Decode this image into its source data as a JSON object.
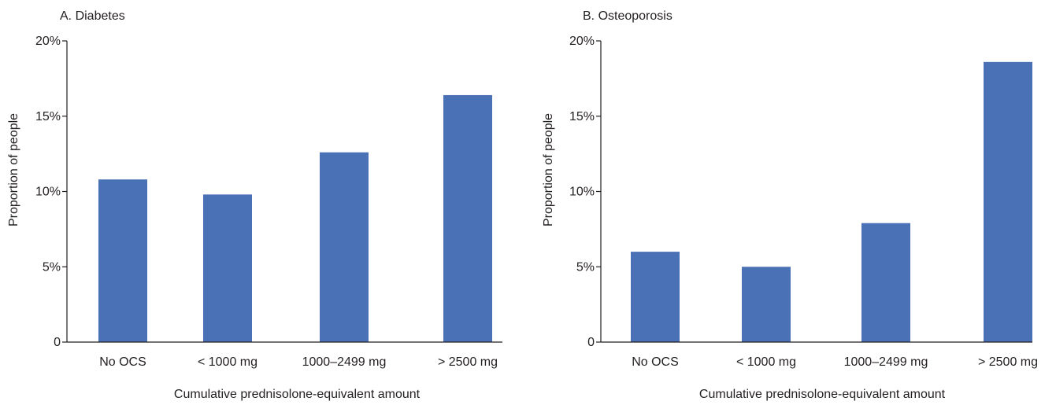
{
  "chart_data": [
    {
      "type": "bar",
      "title": "A. Diabetes",
      "xlabel": "Cumulative prednisolone-equivalent amount",
      "ylabel": "Proportion of people",
      "categories": [
        "No OCS",
        "< 1000 mg",
        "1000–2499 mg",
        "> 2500 mg"
      ],
      "values": [
        10.8,
        9.8,
        12.6,
        16.4
      ],
      "ylim": [
        0,
        20
      ],
      "yticks": [
        0,
        5,
        10,
        15,
        20
      ],
      "ytick_labels": [
        "0",
        "5%",
        "10%",
        "15%",
        "20%"
      ],
      "bar_color": "#4a70b5",
      "grid": false,
      "legend": "none"
    },
    {
      "type": "bar",
      "title": "B. Osteoporosis",
      "xlabel": "Cumulative prednisolone-equivalent amount",
      "ylabel": "Proportion of people",
      "categories": [
        "No OCS",
        "< 1000 mg",
        "1000–2499 mg",
        "> 2500 mg"
      ],
      "values": [
        6.0,
        5.0,
        7.9,
        18.6
      ],
      "ylim": [
        0,
        20
      ],
      "yticks": [
        0,
        5,
        10,
        15,
        20
      ],
      "ytick_labels": [
        "0",
        "5%",
        "10%",
        "15%",
        "20%"
      ],
      "bar_color": "#4a70b5",
      "grid": false,
      "legend": "none"
    }
  ]
}
